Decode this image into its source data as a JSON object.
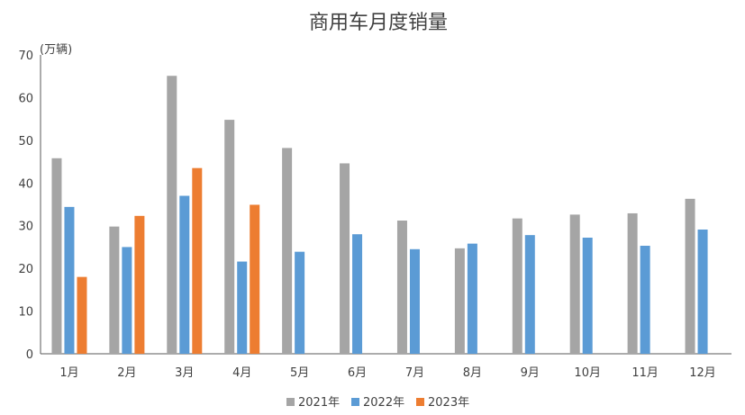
{
  "chart_data": {
    "type": "bar",
    "title": "商用车月度销量",
    "unit_label": "(万辆)",
    "categories": [
      "1月",
      "2月",
      "3月",
      "4月",
      "5月",
      "6月",
      "7月",
      "8月",
      "9月",
      "10月",
      "11月",
      "12月"
    ],
    "ylim": [
      0,
      70
    ],
    "yticks": [
      "0",
      "10",
      "20",
      "30",
      "40",
      "50",
      "60",
      "70"
    ],
    "grid": false,
    "legend_position": "bottom",
    "series": [
      {
        "name": "2021年",
        "color": "#A5A5A5",
        "values": [
          45.8,
          29.8,
          65.1,
          54.8,
          48.2,
          44.6,
          31.2,
          24.7,
          31.7,
          32.6,
          32.9,
          36.3
        ]
      },
      {
        "name": "2022年",
        "color": "#5B9BD5",
        "values": [
          34.4,
          25.0,
          37.0,
          21.6,
          23.9,
          28.0,
          24.5,
          25.8,
          27.8,
          27.2,
          25.3,
          29.1
        ]
      },
      {
        "name": "2023年",
        "color": "#ED7D31",
        "values": [
          18.0,
          32.3,
          43.5,
          34.9,
          null,
          null,
          null,
          null,
          null,
          null,
          null,
          null
        ]
      }
    ]
  }
}
